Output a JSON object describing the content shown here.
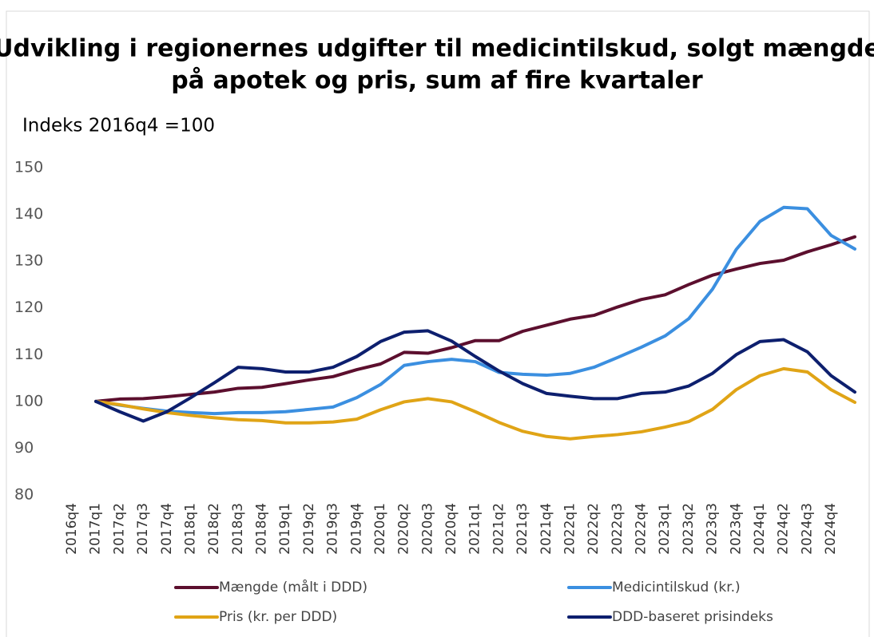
{
  "chart_data": {
    "type": "line",
    "title": [
      "Udvikling i regionernes udgifter til medicintilskud, solgt mængde",
      "på apotek og pris, sum af fire kvartaler"
    ],
    "subtitle": "Indeks 2016q4 =100",
    "categories": [
      "2016q4",
      "2017q1",
      "2017q2",
      "2017q3",
      "2017q4",
      "2018q1",
      "2018q2",
      "2018q3",
      "2018q4",
      "2019q1",
      "2019q2",
      "2019q3",
      "2019q4",
      "2020q1",
      "2020q2",
      "2020q3",
      "2020q4",
      "2021q1",
      "2021q2",
      "2021q3",
      "2021q4",
      "2022q1",
      "2022q2",
      "2022q3",
      "2022q4",
      "2023q1",
      "2023q2",
      "2023q3",
      "2023q4",
      "2024q1",
      "2024q2",
      "2024q3",
      "2024q4"
    ],
    "series": [
      {
        "name": "Mængde (målt i DDD)",
        "color": "#5c0f2e",
        "values": [
          100,
          100.5,
          100.6,
          101,
          101.5,
          102,
          102.8,
          103,
          103.8,
          104.6,
          105.3,
          106.8,
          108,
          110.5,
          110.3,
          111.5,
          113,
          113,
          115,
          116.3,
          117.6,
          118.4,
          120.2,
          121.8,
          122.8,
          125,
          127,
          128.3,
          129.5,
          130.2,
          132,
          133.5,
          135.2
        ]
      },
      {
        "name": "Medicintilskud (kr.)",
        "color": "#3b8fe0",
        "values": [
          100,
          99.2,
          98.5,
          97.9,
          97.6,
          97.4,
          97.6,
          97.6,
          97.8,
          98.3,
          98.8,
          100.8,
          103.6,
          107.7,
          108.5,
          109,
          108.5,
          106.2,
          105.8,
          105.6,
          106,
          107.3,
          109.4,
          111.6,
          114,
          117.7,
          124,
          132.5,
          138.5,
          141.5,
          141.2,
          135.5,
          132.6
        ]
      },
      {
        "name": "Pris (kr. per DDD)",
        "color": "#e0a416",
        "values": [
          100,
          99.3,
          98.4,
          97.6,
          97,
          96.5,
          96.1,
          95.9,
          95.4,
          95.4,
          95.6,
          96.2,
          98.2,
          99.9,
          100.6,
          99.9,
          97.8,
          95.5,
          93.6,
          92.5,
          92,
          92.5,
          92.9,
          93.5,
          94.5,
          95.7,
          98.3,
          102.5,
          105.5,
          107,
          106.3,
          102.5,
          99.8
        ]
      },
      {
        "name": "DDD-baseret prisindeks",
        "color": "#0d1f6e",
        "values": [
          100,
          97.8,
          95.8,
          97.8,
          100.8,
          104,
          107.3,
          107,
          106.3,
          106.3,
          107.3,
          109.6,
          112.8,
          114.8,
          115.1,
          112.9,
          109.6,
          106.5,
          103.8,
          101.7,
          101.1,
          100.6,
          100.6,
          101.7,
          102,
          103.3,
          106,
          110,
          112.8,
          113.2,
          110.6,
          105.5,
          102
        ]
      }
    ],
    "ylim": [
      80,
      150
    ],
    "yticks": [
      80,
      90,
      100,
      110,
      120,
      130,
      140,
      150
    ],
    "grid": false
  }
}
